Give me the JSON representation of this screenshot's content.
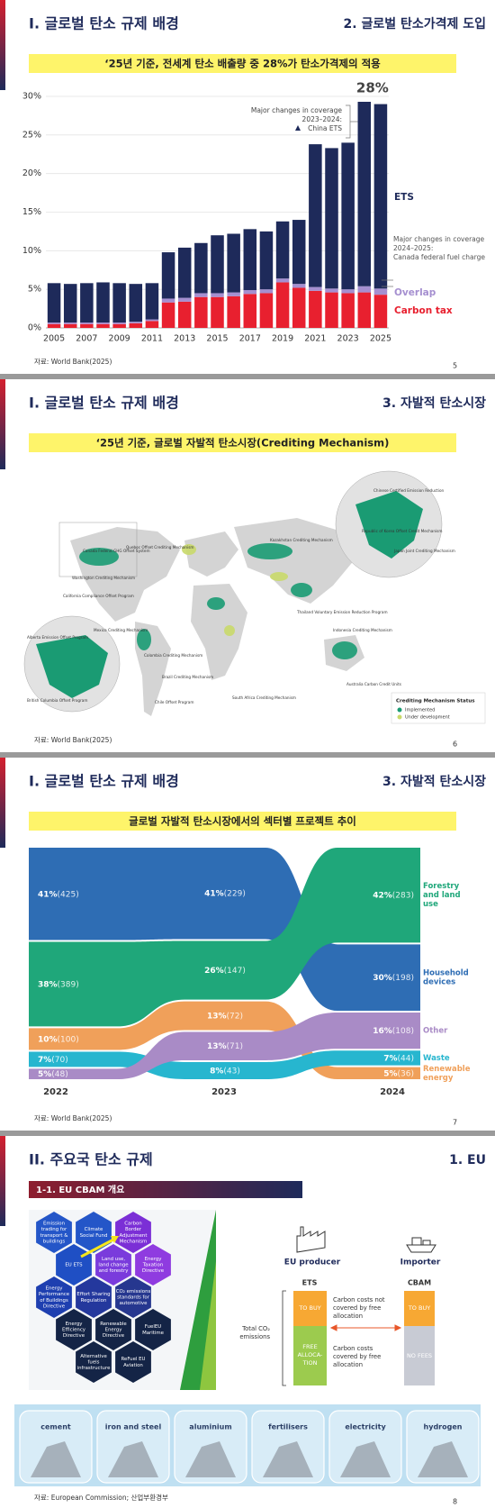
{
  "slides": [
    {
      "title": "I. 글로벌 탄소 규제 배경",
      "section": "2. 글로벌 탄소가격제 도입",
      "banner": "‘25년 기준, 전세계 탄소 배출량 중 28%가 탄소가격제의 적용",
      "source": "자료: World Bank(2025)",
      "page": "5"
    },
    {
      "title": "I. 글로벌 탄소 규제 배경",
      "section": "3. 자발적 탄소시장",
      "banner": "‘25년 기준, 글로벌 자발적 탄소시장(Crediting Mechanism)",
      "source": "자료: World Bank(2025)",
      "page": "6",
      "map": {
        "labels": [
          "Canada Federal GHG Offset System",
          "Washington Crediting Mechanism",
          "California Compliance Offset Program",
          "Mexico Crediting Mechanism",
          "Quebec Offset Crediting Mechanism",
          "Colombia Crediting Mechanism",
          "Chile Offset Program",
          "Brazil Crediting Mechanism",
          "Kazakhstan Crediting Mechanism",
          "South Africa Crediting Mechanism",
          "Thailand Voluntary Emission Reduction Program",
          "Indonesia Crediting Mechanism",
          "Australia Carbon Credit Units",
          "Republic of Korea Offset Credit Mechanism",
          "Japan Joint Crediting Mechanism",
          "Chinese Certified Emission Reduction",
          "Alberta Emission Offset Program",
          "British Columbia Offset Program"
        ],
        "legend": {
          "title": "Crediting Mechanism Status",
          "items": [
            {
              "label": "Implemented",
              "color": "#1a9b73"
            },
            {
              "label": "Under development",
              "color": "#c9d96a"
            }
          ]
        }
      }
    },
    {
      "title": "I. 글로벌 탄소 규제 배경",
      "section": "3. 자발적 탄소시장",
      "banner": "글로벌 자발적 탄소시장에서의 섹터별 프로젝트 추이",
      "source": "자료: World Bank(2025)",
      "page": "7",
      "sankey": {
        "years": [
          "2022",
          "2023",
          "2024"
        ],
        "sectors": [
          {
            "name_lines": [
              "Household",
              "devices"
            ],
            "color": "#2e6db4",
            "values": [
              425,
              229,
              198
            ],
            "value_labels": [
              "(425)",
              "(229)",
              "(198)"
            ],
            "share_labels": [
              "41%",
              "41%",
              "30%"
            ]
          },
          {
            "name_lines": [
              "Forestry",
              "and land",
              "use"
            ],
            "color": "#1fa77a",
            "values": [
              389,
              147,
              283
            ],
            "value_labels": [
              "(389)",
              "(147)",
              "(283)"
            ],
            "share_labels": [
              "38%",
              "26%",
              "42%"
            ]
          },
          {
            "name_lines": [
              "Renewable",
              "energy"
            ],
            "color": "#f0a05a",
            "values": [
              100,
              72,
              36
            ],
            "value_labels": [
              "(100)",
              "(72)",
              "(36)"
            ],
            "share_labels": [
              "10%",
              "13%",
              "5%"
            ]
          },
          {
            "name_lines": [
              "Waste"
            ],
            "color": "#27b6cf",
            "values": [
              70,
              43,
              44
            ],
            "value_labels": [
              "(70)",
              "(43)",
              "(44)"
            ],
            "share_labels": [
              "7%",
              "8%",
              "7%"
            ]
          },
          {
            "name_lines": [
              "Other"
            ],
            "color": "#a98bc6",
            "values": [
              48,
              71,
              108
            ],
            "value_labels": [
              "(48)",
              "(71)",
              "(108)"
            ],
            "share_labels": [
              "5%",
              "13%",
              "16%"
            ]
          }
        ]
      }
    },
    {
      "title": "II. 주요국 탄소 규제",
      "section": "1. EU",
      "subtitle": "1-1. EU CBAM 개요",
      "source": "자료: European Commission; 산업부환경부",
      "page": "8",
      "policies": [
        [
          "Emission",
          "trading for",
          "transport &",
          "buildings"
        ],
        [
          "Climate",
          "Social Fund"
        ],
        [
          "Carbon",
          "Border",
          "Adjustment",
          "Mechanism"
        ],
        [
          "EU ETS"
        ],
        [
          "Land use,",
          "land change",
          "and forestry"
        ],
        [
          "Energy",
          "Taxation",
          "Directive"
        ],
        [
          "Energy",
          "Performance",
          "of Buildings",
          "Directive"
        ],
        [
          "Effort Sharing",
          "Regulation"
        ],
        [
          "CO₂ emissions",
          "standards for",
          "automotive"
        ],
        [
          "Energy",
          "Efficiency",
          "Directive"
        ],
        [
          "Renewable",
          "Energy",
          "Directive"
        ],
        [
          "FuelEU",
          "Maritime"
        ],
        [
          "Alternative",
          "fuels",
          "infrastructure"
        ],
        [
          "ReFuel EU",
          "Aviation"
        ]
      ],
      "cbam": {
        "producer": "EU producer",
        "importer": "Importer",
        "ets": "ETS",
        "cbam": "CBAM",
        "ets_top": "TO BUY",
        "ets_bottom": [
          "FREE",
          "ALLOCA-",
          "TION"
        ],
        "cbam_top": "TO BUY",
        "cbam_bottom": "NO FEES",
        "not_covered": [
          "Carbon costs not",
          "covered by free",
          "allocation"
        ],
        "covered": [
          "Carbon costs",
          "covered by free",
          "allocation"
        ],
        "total": [
          "Total CO₂",
          "emissions"
        ]
      },
      "sectors": [
        "cement",
        "iron and steel",
        "aluminium",
        "fertilisers",
        "electricity",
        "hydrogen"
      ]
    }
  ],
  "chart_data": {
    "type": "bar",
    "stacked": true,
    "categories": [
      "2005",
      null,
      "2007",
      null,
      "2009",
      null,
      "2011",
      null,
      "2013",
      null,
      "2015",
      null,
      "2017",
      null,
      "2019",
      null,
      "2021",
      null,
      "2023",
      null,
      "2025"
    ],
    "series": [
      {
        "name": "Carbon tax",
        "color": "#e8202f",
        "values": [
          0.5,
          0.5,
          0.5,
          0.5,
          0.5,
          0.6,
          0.9,
          3.3,
          3.4,
          4.0,
          4.0,
          4.1,
          4.4,
          4.5,
          5.9,
          5.2,
          4.8,
          4.6,
          4.5,
          4.6,
          4.3
        ]
      },
      {
        "name": "Overlap",
        "color": "#a58fd0",
        "values": [
          0.2,
          0.2,
          0.2,
          0.2,
          0.2,
          0.2,
          0.2,
          0.5,
          0.5,
          0.5,
          0.5,
          0.5,
          0.5,
          0.5,
          0.5,
          0.5,
          0.5,
          0.5,
          0.5,
          0.8,
          0.8
        ]
      },
      {
        "name": "ETS",
        "color": "#1e2a5a",
        "values": [
          5.1,
          5.0,
          5.1,
          5.2,
          5.1,
          4.9,
          4.7,
          6.0,
          6.5,
          6.5,
          7.5,
          7.6,
          7.9,
          7.5,
          7.4,
          8.3,
          18.5,
          18.2,
          19.0,
          23.9,
          23.9
        ]
      }
    ],
    "ylim": [
      0,
      30
    ],
    "yticks": [
      {
        "value": 0,
        "label": "0%"
      },
      {
        "value": 5,
        "label": "5%"
      },
      {
        "value": 10,
        "label": "10%"
      },
      {
        "value": 15,
        "label": "15%"
      },
      {
        "value": 20,
        "label": "20%"
      },
      {
        "value": 25,
        "label": "25%"
      },
      {
        "value": 30,
        "label": "30%"
      }
    ],
    "grid": true,
    "annotations": [
      {
        "text": "28%"
      },
      {
        "lines": [
          "Major changes in coverage",
          "2023–2024:",
          "China ETS"
        ]
      },
      {
        "lines": [
          "Major changes in coverage",
          "2024–2025:",
          "Canada federal fuel charge"
        ]
      }
    ]
  }
}
